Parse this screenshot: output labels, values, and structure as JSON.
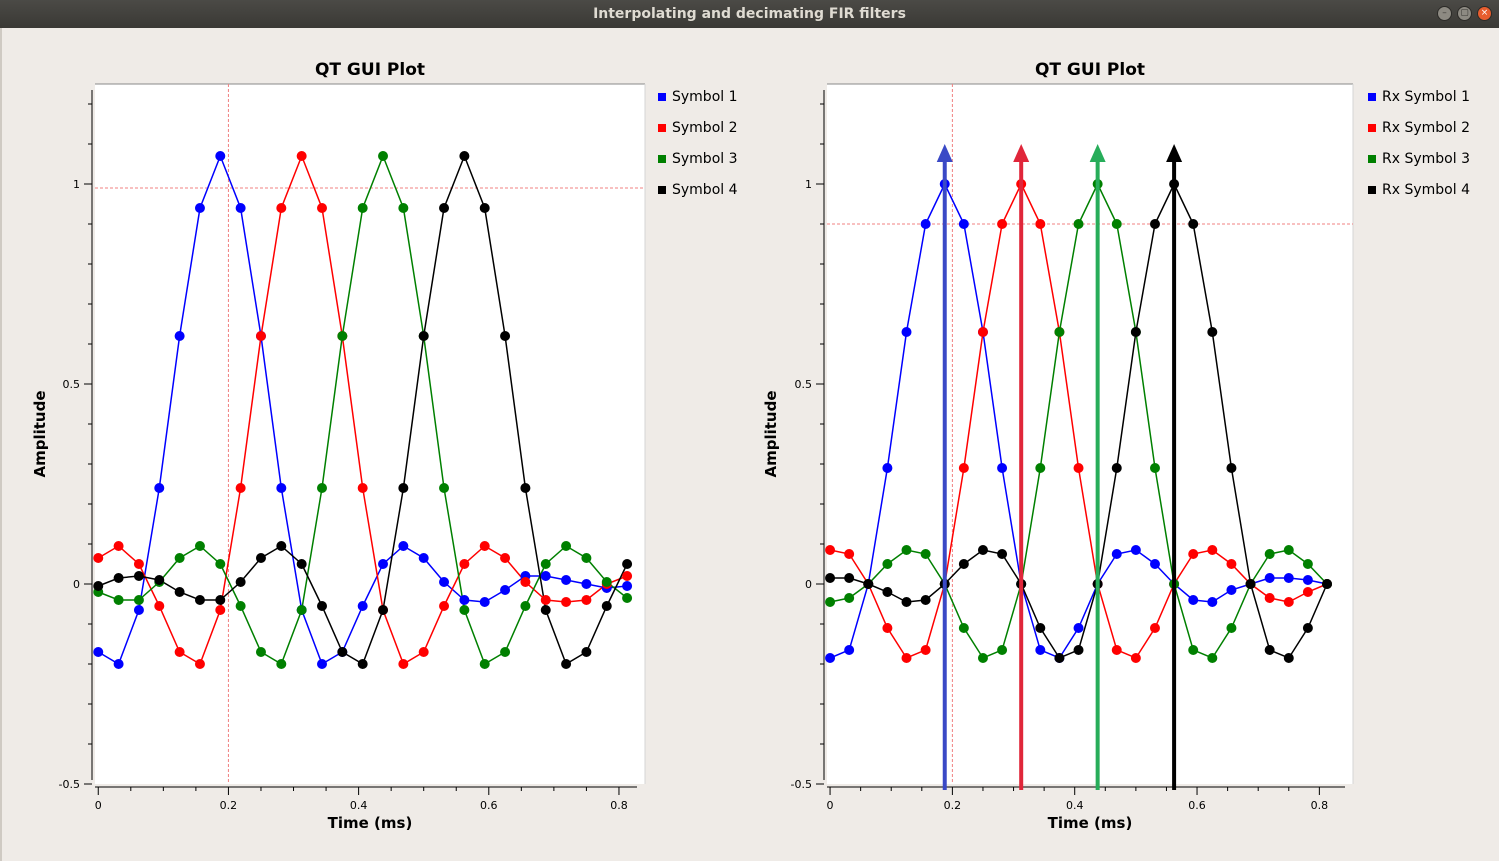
{
  "window": {
    "title": "Interpolating and decimating FIR filters",
    "buttons": {
      "minimize": "–",
      "maximize": "▢",
      "close": "×"
    }
  },
  "colors": {
    "blue": "#0000ff",
    "red": "#ff0000",
    "green": "#008000",
    "black": "#000000",
    "arrow_blue": "#3a49c6",
    "arrow_red": "#e0263a",
    "arrow_green": "#27ad5a",
    "arrow_black": "#000000",
    "marker": "#f08080"
  },
  "chart_data": [
    {
      "type": "line",
      "title": "QT GUI Plot",
      "xlabel": "Time (ms)",
      "ylabel": "Amplitude",
      "xlim": [
        -0.005,
        0.84
      ],
      "ylim": [
        -0.5,
        1.25
      ],
      "xticks": [
        0,
        0.2,
        0.4,
        0.6,
        0.8
      ],
      "xtick_labels": [
        "0",
        "0.2",
        "0.4",
        "0.6",
        "0.8"
      ],
      "yticks": [
        -0.5,
        0,
        0.5,
        1
      ],
      "ytick_labels": [
        "-0.5",
        "0",
        "0.5",
        "1"
      ],
      "marker_x": 0.2,
      "marker_y": 0.99,
      "x": [
        0,
        0.03125,
        0.0625,
        0.09375,
        0.125,
        0.15625,
        0.1875,
        0.21875,
        0.25,
        0.28125,
        0.3125,
        0.34375,
        0.375,
        0.40625,
        0.4375,
        0.46875,
        0.5,
        0.53125,
        0.5625,
        0.59375,
        0.625,
        0.65625,
        0.6875,
        0.71875,
        0.75,
        0.78125,
        0.8125
      ],
      "series": [
        {
          "name": "Symbol 1",
          "color": "blue",
          "values": [
            -0.17,
            -0.2,
            -0.065,
            0.24,
            0.62,
            0.94,
            1.07,
            0.94,
            0.62,
            0.24,
            -0.065,
            -0.2,
            -0.17,
            -0.055,
            0.05,
            0.095,
            0.065,
            0.005,
            -0.04,
            -0.045,
            -0.015,
            0.02,
            0.02,
            0.01,
            0.0,
            -0.01,
            -0.005
          ]
        },
        {
          "name": "Symbol 2",
          "color": "red",
          "values": [
            0.065,
            0.095,
            0.05,
            -0.055,
            -0.17,
            -0.2,
            -0.065,
            0.24,
            0.62,
            0.94,
            1.07,
            0.94,
            0.62,
            0.24,
            -0.065,
            -0.2,
            -0.17,
            -0.055,
            0.05,
            0.095,
            0.065,
            0.005,
            -0.04,
            -0.045,
            -0.04,
            0.0,
            0.02
          ]
        },
        {
          "name": "Symbol 3",
          "color": "green",
          "values": [
            -0.02,
            -0.04,
            -0.04,
            0.005,
            0.065,
            0.095,
            0.05,
            -0.055,
            -0.17,
            -0.2,
            -0.065,
            0.24,
            0.62,
            0.94,
            1.07,
            0.94,
            0.62,
            0.24,
            -0.065,
            -0.2,
            -0.17,
            -0.055,
            0.05,
            0.095,
            0.065,
            0.005,
            -0.035
          ]
        },
        {
          "name": "Symbol 4",
          "color": "black",
          "values": [
            -0.005,
            0.015,
            0.02,
            0.01,
            -0.02,
            -0.04,
            -0.04,
            0.005,
            0.065,
            0.095,
            0.05,
            -0.055,
            -0.17,
            -0.2,
            -0.065,
            0.24,
            0.62,
            0.94,
            1.07,
            0.94,
            0.62,
            0.24,
            -0.065,
            -0.2,
            -0.17,
            -0.055,
            0.05
          ]
        }
      ]
    },
    {
      "type": "line",
      "title": "QT GUI Plot",
      "xlabel": "Time (ms)",
      "ylabel": "Amplitude",
      "xlim": [
        -0.005,
        0.855
      ],
      "ylim": [
        -0.5,
        1.25
      ],
      "xticks": [
        0,
        0.2,
        0.4,
        0.6,
        0.8
      ],
      "xtick_labels": [
        "0",
        "0.2",
        "0.4",
        "0.6",
        "0.8"
      ],
      "yticks": [
        -0.5,
        0,
        0.5,
        1
      ],
      "ytick_labels": [
        "-0.5",
        "0",
        "0.5",
        "1"
      ],
      "marker_x": 0.2,
      "marker_y": 0.9,
      "x": [
        0,
        0.03125,
        0.0625,
        0.09375,
        0.125,
        0.15625,
        0.1875,
        0.21875,
        0.25,
        0.28125,
        0.3125,
        0.34375,
        0.375,
        0.40625,
        0.4375,
        0.46875,
        0.5,
        0.53125,
        0.5625,
        0.59375,
        0.625,
        0.65625,
        0.6875,
        0.71875,
        0.75,
        0.78125,
        0.8125
      ],
      "series": [
        {
          "name": "Rx Symbol 1",
          "color": "blue",
          "values": [
            -0.185,
            -0.165,
            0.0,
            0.29,
            0.63,
            0.9,
            1.0,
            0.9,
            0.63,
            0.29,
            0.0,
            -0.165,
            -0.185,
            -0.11,
            0.0,
            0.075,
            0.085,
            0.05,
            0.0,
            -0.04,
            -0.045,
            -0.015,
            0.0,
            0.015,
            0.015,
            0.01,
            0.0
          ]
        },
        {
          "name": "Rx Symbol 2",
          "color": "red",
          "values": [
            0.085,
            0.075,
            0.0,
            -0.11,
            -0.185,
            -0.165,
            0.0,
            0.29,
            0.63,
            0.9,
            1.0,
            0.9,
            0.63,
            0.29,
            0.0,
            -0.165,
            -0.185,
            -0.11,
            0.0,
            0.075,
            0.085,
            0.05,
            0.0,
            -0.035,
            -0.045,
            -0.02,
            0.0
          ]
        },
        {
          "name": "Rx Symbol 3",
          "color": "green",
          "values": [
            -0.045,
            -0.035,
            0.0,
            0.05,
            0.085,
            0.075,
            0.0,
            -0.11,
            -0.185,
            -0.165,
            0.0,
            0.29,
            0.63,
            0.9,
            1.0,
            0.9,
            0.63,
            0.29,
            0.0,
            -0.165,
            -0.185,
            -0.11,
            0.0,
            0.075,
            0.085,
            0.05,
            0.0
          ]
        },
        {
          "name": "Rx Symbol 4",
          "color": "black",
          "values": [
            0.015,
            0.015,
            0.0,
            -0.02,
            -0.045,
            -0.04,
            0.0,
            0.05,
            0.085,
            0.075,
            0.0,
            -0.11,
            -0.185,
            -0.165,
            0.0,
            0.29,
            0.63,
            0.9,
            1.0,
            0.9,
            0.63,
            0.29,
            0.0,
            -0.165,
            -0.185,
            -0.11,
            0.0
          ]
        }
      ],
      "annotations": [
        {
          "type": "arrow",
          "color": "arrow_blue",
          "x": 0.1875,
          "y_from": -0.53,
          "y_to": 1.09
        },
        {
          "type": "arrow",
          "color": "arrow_red",
          "x": 0.3125,
          "y_from": -0.53,
          "y_to": 1.09
        },
        {
          "type": "arrow",
          "color": "arrow_green",
          "x": 0.4375,
          "y_from": -0.53,
          "y_to": 1.09
        },
        {
          "type": "arrow",
          "color": "arrow_black",
          "x": 0.5625,
          "y_from": -0.53,
          "y_to": 1.09
        }
      ]
    }
  ]
}
